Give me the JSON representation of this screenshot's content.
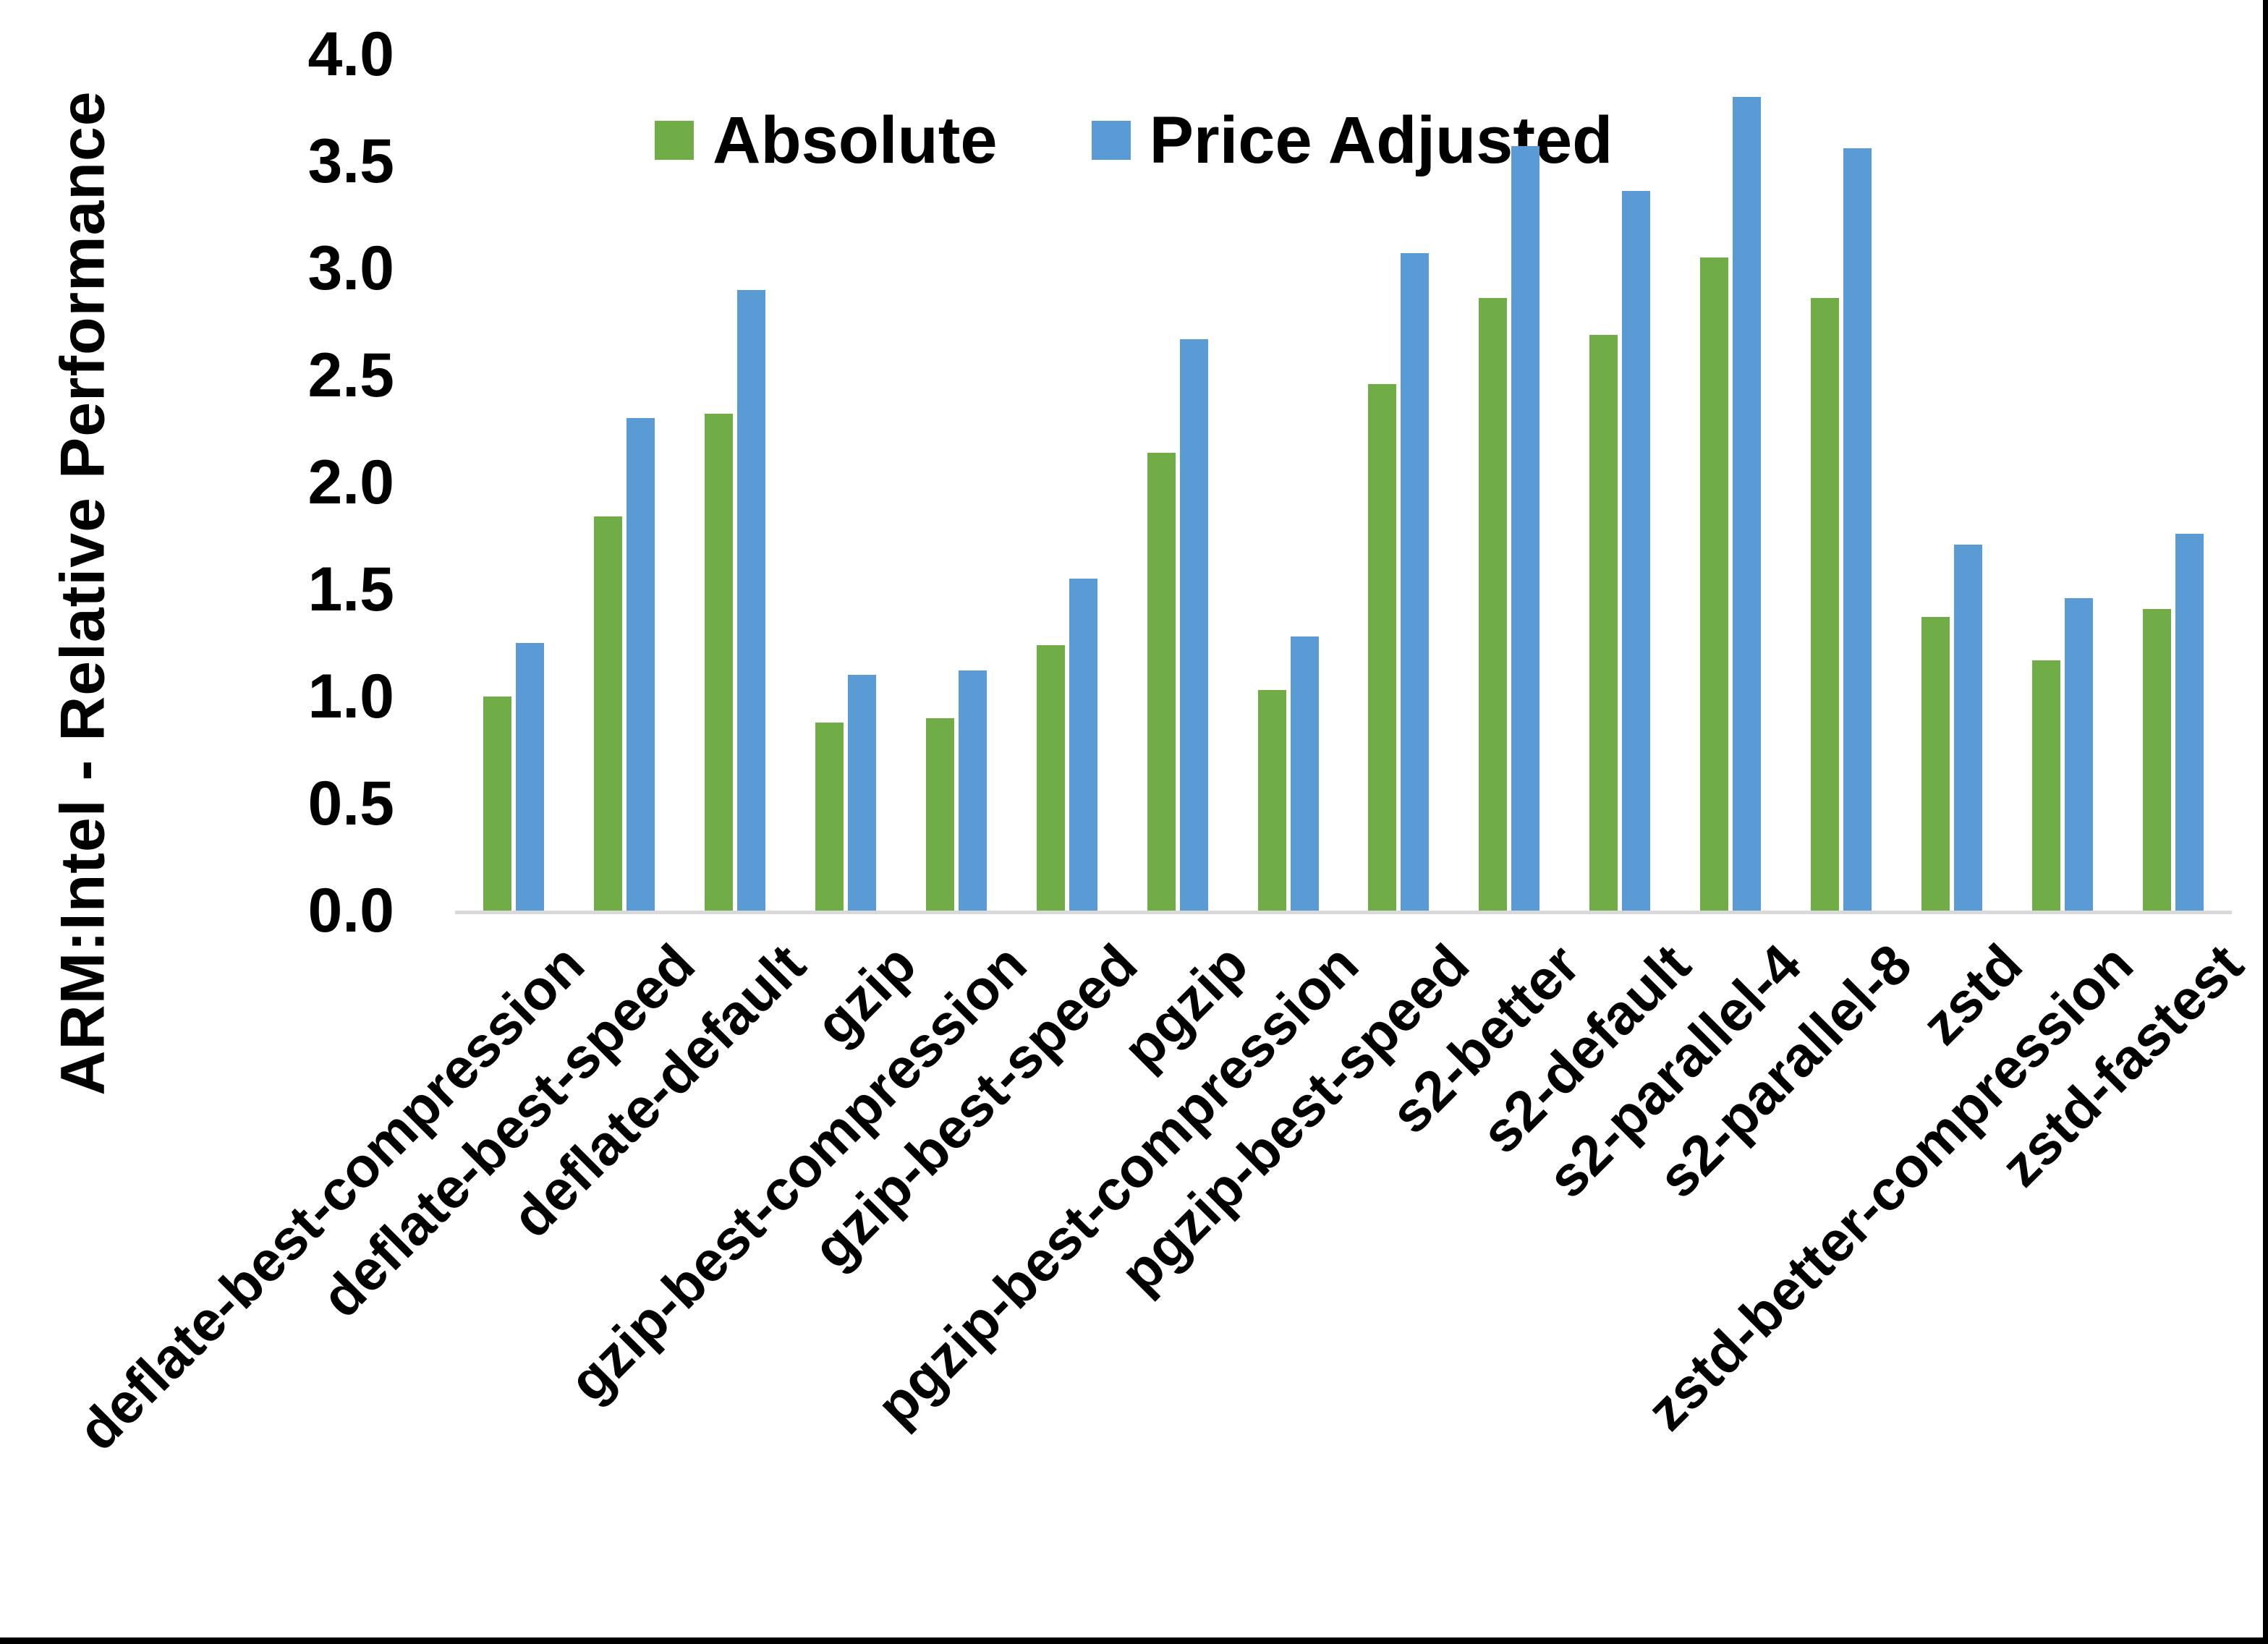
{
  "figure": {
    "background": "#FFFFFF",
    "border_color": "#000000",
    "axis_line_color": "#D9D9D9"
  },
  "chart_data": {
    "type": "bar",
    "title": "",
    "xlabel": "",
    "ylabel": "ARM:Intel - Relative Performance",
    "ylim": [
      0.0,
      4.0
    ],
    "ytick_step": 0.5,
    "yticks": [
      "0.0",
      "0.5",
      "1.0",
      "1.5",
      "2.0",
      "2.5",
      "3.0",
      "3.5",
      "4.0"
    ],
    "grid": false,
    "legend_position": "top-center",
    "categories": [
      "deflate-best-compression",
      "deflate-best-speed",
      "deflate-default",
      "gzip",
      "gzip-best-compression",
      "gzip-best-speed",
      "pgzip",
      "pgzip-best-compression",
      "pgzip-best-speed",
      "s2-better",
      "s2-default",
      "s2-parallel-4",
      "s2-parallel-8",
      "zstd",
      "zstd-better-compression",
      "zstd-fastest"
    ],
    "series": [
      {
        "name": "Absolute",
        "color": "#70AD47",
        "values": [
          1.0,
          1.84,
          2.32,
          0.88,
          0.9,
          1.24,
          2.14,
          1.03,
          2.46,
          2.86,
          2.69,
          3.05,
          2.86,
          1.37,
          1.17,
          1.41
        ]
      },
      {
        "name": "Price Adjusted",
        "color": "#5B9BD5",
        "values": [
          1.25,
          2.3,
          2.9,
          1.1,
          1.12,
          1.55,
          2.67,
          1.28,
          3.07,
          3.57,
          3.36,
          3.8,
          3.56,
          1.71,
          1.46,
          1.76
        ]
      }
    ]
  }
}
